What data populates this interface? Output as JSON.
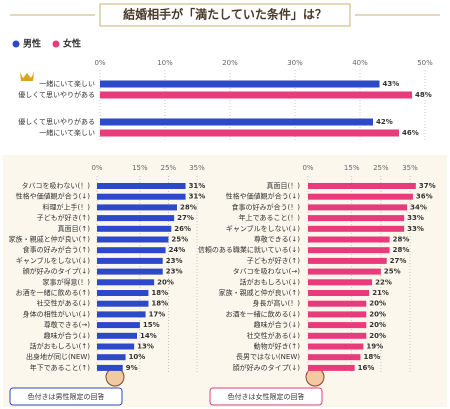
{
  "header": {
    "title": "結婚相手が「満たしていた条件」は？"
  },
  "chart_data": [
    {
      "type": "bar",
      "xlim": [
        0,
        50
      ],
      "xticks": [
        {
          "value": 0,
          "label": "0%"
        },
        {
          "value": 10,
          "label": "10%"
        },
        {
          "value": 20,
          "label": "20%"
        },
        {
          "value": 30,
          "label": "30%"
        },
        {
          "value": 40,
          "label": "40%"
        },
        {
          "value": 50,
          "label": "50%"
        }
      ],
      "grid": true,
      "series": [
        {
          "name": "男性",
          "color": "#2c49c9",
          "categories": [
            "一緒にいて楽しい",
            "優しくて思いやりがある"
          ],
          "values": [
            43,
            42
          ],
          "value_labels": [
            "43%",
            "42%"
          ]
        },
        {
          "name": "女性",
          "color": "#e73b7b",
          "categories": [
            "優しくて思いやりがある",
            "一緒にいて楽しい"
          ],
          "values": [
            48,
            46
          ],
          "value_labels": [
            "48%",
            "46%"
          ]
        }
      ]
    },
    {
      "type": "bar",
      "color": "#2c49c9",
      "xlim": [
        0,
        35
      ],
      "xticks": [
        {
          "value": 0,
          "label": "0%"
        },
        {
          "value": 15,
          "label": "15%"
        },
        {
          "value": 25,
          "label": "25%"
        },
        {
          "value": 35,
          "label": "35%"
        }
      ],
      "grid": true,
      "categories": [
        "タバコを吸わない(！)",
        "性格や価値観が合う(↓)",
        "料理が上手(！)",
        "子どもが好き(↑)",
        "真面目(↑)",
        "家族・親戚と仲が良い(↑)",
        "食事の好みが合う(↑)",
        "ギャンブルをしない(↓)",
        "顔が好みのタイプ(↓)",
        "家事が得意(！)",
        "お酒を一緒に飲める(↑)",
        "社交性がある(↓)",
        "身体の相性がいい(↓)",
        "尊敬できる(→)",
        "趣味が合う(↓)",
        "話がおもしろい(↑)",
        "出身地が同じ(NEW)",
        "年下であること(↑)"
      ],
      "values": [
        31,
        31,
        28,
        27,
        26,
        25,
        24,
        23,
        23,
        20,
        18,
        18,
        17,
        15,
        14,
        13,
        10,
        9
      ],
      "value_labels": [
        "31%",
        "31%",
        "28%",
        "27%",
        "26%",
        "25%",
        "24%",
        "23%",
        "23%",
        "20%",
        "18%",
        "18%",
        "17%",
        "15%",
        "14%",
        "13%",
        "10%",
        "9%"
      ],
      "highlight": [
        false,
        false,
        true,
        false,
        false,
        false,
        false,
        false,
        false,
        true,
        false,
        false,
        true,
        false,
        false,
        false,
        false,
        true
      ]
    },
    {
      "type": "bar",
      "color": "#e73b7b",
      "xlim": [
        0,
        35
      ],
      "xticks": [
        {
          "value": 0,
          "label": "0%"
        },
        {
          "value": 15,
          "label": "15%"
        },
        {
          "value": 25,
          "label": "25%"
        },
        {
          "value": 35,
          "label": "35%"
        }
      ],
      "grid": true,
      "categories": [
        "真面目(！)",
        "性格や価値観が合う(↓)",
        "食事の好みが合う(！)",
        "年上であること(！)",
        "ギャンブルをしない(↓)",
        "尊敬できる(↓)",
        "信頼のある職業に就いている(↓)",
        "子どもが好き(↑)",
        "タバコを吸わない(→)",
        "話がおもしろい(↓)",
        "家族・親戚と仲が良い(↑)",
        "身長が高い(！)",
        "お酒を一緒に飲める(↓)",
        "趣味が合う(↓)",
        "社交性がある(↓)",
        "動物が好き(↑)",
        "長男ではない(NEW)",
        "顔が好みのタイプ(↓)"
      ],
      "values": [
        37,
        36,
        34,
        33,
        33,
        28,
        28,
        27,
        25,
        22,
        21,
        20,
        20,
        20,
        20,
        19,
        18,
        16
      ],
      "value_labels": [
        "37%",
        "36%",
        "34%",
        "33%",
        "33%",
        "28%",
        "28%",
        "27%",
        "25%",
        "22%",
        "21%",
        "20%",
        "20%",
        "20%",
        "20%",
        "19%",
        "18%",
        "16%"
      ],
      "highlight": [
        false,
        false,
        false,
        true,
        false,
        false,
        true,
        false,
        false,
        false,
        false,
        true,
        false,
        false,
        false,
        true,
        false,
        false
      ]
    }
  ],
  "notes": [
    "色付きは男性限定の回答",
    "色付きは女性限定の回答"
  ]
}
